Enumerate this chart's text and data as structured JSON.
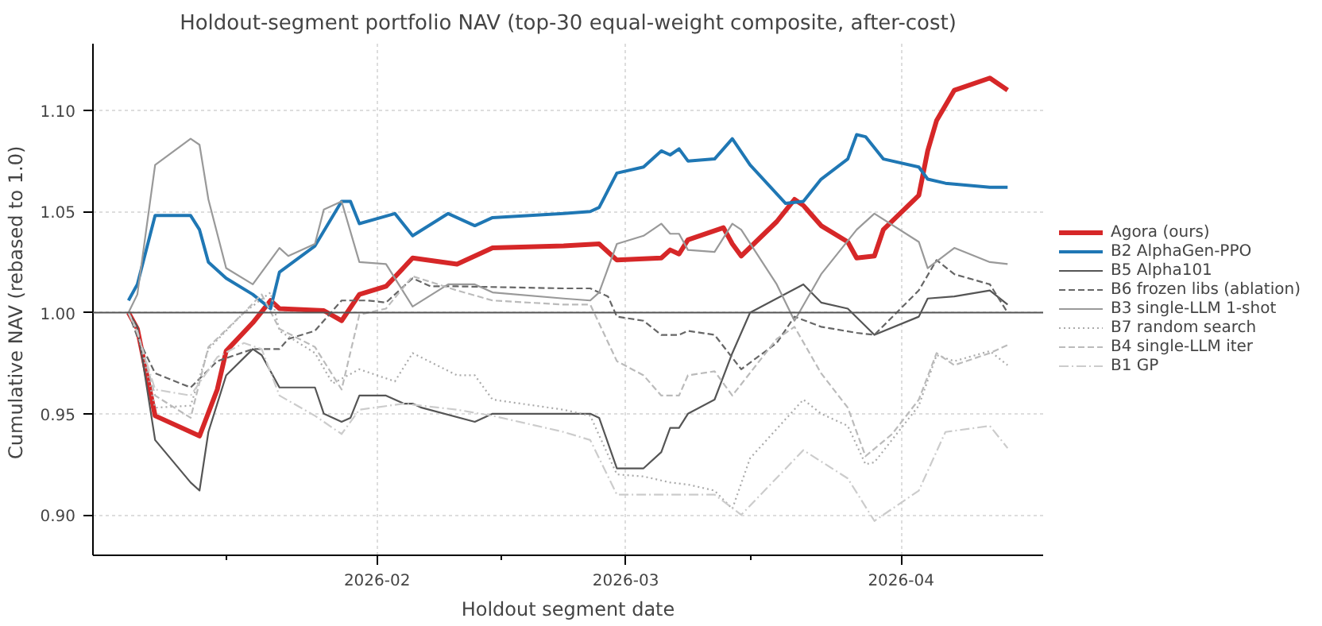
{
  "chart_data": {
    "type": "line",
    "title": "Holdout-segment portfolio NAV (top-30 equal-weight composite, after-cost)",
    "xlabel": "Holdout segment date",
    "ylabel": "Cumulative NAV  (rebased to 1.0)",
    "xlim": [
      "2025-12-31",
      "2026-04-17"
    ],
    "ylim": [
      0.88,
      1.133
    ],
    "xticks": [
      {
        "value": "2026-01-15",
        "label": null
      },
      {
        "value": "2026-02-01",
        "label": "2026-02"
      },
      {
        "value": "2026-02-15",
        "label": null
      },
      {
        "value": "2026-03-01",
        "label": "2026-03"
      },
      {
        "value": "2026-03-15",
        "label": null
      },
      {
        "value": "2026-04-01",
        "label": "2026-04"
      }
    ],
    "yticks": [
      {
        "value": 0.9,
        "label": "0.90"
      },
      {
        "value": 0.95,
        "label": "0.95"
      },
      {
        "value": 1.0,
        "label": "1.00"
      },
      {
        "value": 1.05,
        "label": "1.05"
      },
      {
        "value": 1.1,
        "label": "1.10"
      }
    ],
    "grid": true,
    "legend": "right",
    "marker": "none",
    "ref_lines": [
      {
        "axis": "y",
        "value": 1.0,
        "label": null,
        "color": "#555555",
        "line_style": "solid"
      }
    ],
    "series": [
      {
        "name": "Agora (ours)",
        "color": "#d62728",
        "line_style": "solid",
        "x": [
          "2026-01-04",
          "2026-01-05",
          "2026-01-07",
          "2026-01-12",
          "2026-01-14",
          "2026-01-15",
          "2026-01-18",
          "2026-01-20",
          "2026-01-21",
          "2026-01-26",
          "2026-01-28",
          "2026-01-30",
          "2026-02-02",
          "2026-02-05",
          "2026-02-10",
          "2026-02-14",
          "2026-02-22",
          "2026-02-26",
          "2026-02-28",
          "2026-03-05",
          "2026-03-06",
          "2026-03-07",
          "2026-03-08",
          "2026-03-12",
          "2026-03-13",
          "2026-03-14",
          "2026-03-18",
          "2026-03-20",
          "2026-03-21",
          "2026-03-23",
          "2026-03-26",
          "2026-03-27",
          "2026-03-29",
          "2026-03-30",
          "2026-04-03",
          "2026-04-04",
          "2026-04-05",
          "2026-04-07",
          "2026-04-11",
          "2026-04-13"
        ],
        "values": [
          1.0,
          0.992,
          0.949,
          0.939,
          0.962,
          0.981,
          0.995,
          1.006,
          1.002,
          1.001,
          0.996,
          1.009,
          1.013,
          1.027,
          1.024,
          1.032,
          1.033,
          1.034,
          1.026,
          1.027,
          1.031,
          1.029,
          1.036,
          1.042,
          1.034,
          1.028,
          1.045,
          1.056,
          1.053,
          1.043,
          1.035,
          1.027,
          1.028,
          1.041,
          1.058,
          1.08,
          1.095,
          1.11,
          1.116,
          1.11
        ]
      },
      {
        "name": "B2 AlphaGen-PPO",
        "color": "#1f77b4",
        "line_style": "solid",
        "x": [
          "2026-01-04",
          "2026-01-05",
          "2026-01-07",
          "2026-01-11",
          "2026-01-12",
          "2026-01-13",
          "2026-01-15",
          "2026-01-18",
          "2026-01-20",
          "2026-01-21",
          "2026-01-25",
          "2026-01-28",
          "2026-01-29",
          "2026-01-30",
          "2026-02-03",
          "2026-02-05",
          "2026-02-09",
          "2026-02-12",
          "2026-02-14",
          "2026-02-22",
          "2026-02-25",
          "2026-02-26",
          "2026-02-28",
          "2026-03-03",
          "2026-03-05",
          "2026-03-06",
          "2026-03-07",
          "2026-03-08",
          "2026-03-11",
          "2026-03-13",
          "2026-03-15",
          "2026-03-19",
          "2026-03-21",
          "2026-03-23",
          "2026-03-26",
          "2026-03-27",
          "2026-03-28",
          "2026-03-30",
          "2026-04-03",
          "2026-04-04",
          "2026-04-06",
          "2026-04-11",
          "2026-04-13"
        ],
        "values": [
          1.006,
          1.014,
          1.048,
          1.048,
          1.041,
          1.025,
          1.017,
          1.009,
          1.002,
          1.02,
          1.033,
          1.055,
          1.055,
          1.044,
          1.049,
          1.038,
          1.049,
          1.043,
          1.047,
          1.049,
          1.05,
          1.052,
          1.069,
          1.072,
          1.08,
          1.078,
          1.081,
          1.075,
          1.076,
          1.086,
          1.073,
          1.054,
          1.055,
          1.066,
          1.076,
          1.088,
          1.087,
          1.076,
          1.072,
          1.066,
          1.064,
          1.062,
          1.062
        ]
      },
      {
        "name": "B5 Alpha101",
        "color": "#555555",
        "line_style": "solid",
        "x": [
          "2026-01-04",
          "2026-01-05",
          "2026-01-07",
          "2026-01-11",
          "2026-01-12",
          "2026-01-13",
          "2026-01-15",
          "2026-01-18",
          "2026-01-19",
          "2026-01-21",
          "2026-01-25",
          "2026-01-26",
          "2026-01-28",
          "2026-01-29",
          "2026-01-30",
          "2026-02-02",
          "2026-02-04",
          "2026-02-05",
          "2026-02-06",
          "2026-02-12",
          "2026-02-14",
          "2026-02-22",
          "2026-02-25",
          "2026-02-26",
          "2026-02-28",
          "2026-03-03",
          "2026-03-05",
          "2026-03-06",
          "2026-03-07",
          "2026-03-08",
          "2026-03-11",
          "2026-03-13",
          "2026-03-15",
          "2026-03-21",
          "2026-03-23",
          "2026-03-26",
          "2026-03-29",
          "2026-04-03",
          "2026-04-04",
          "2026-04-07",
          "2026-04-11",
          "2026-04-13"
        ],
        "values": [
          1.0,
          0.993,
          0.937,
          0.916,
          0.912,
          0.941,
          0.969,
          0.982,
          0.979,
          0.963,
          0.963,
          0.95,
          0.946,
          0.948,
          0.959,
          0.959,
          0.955,
          0.955,
          0.953,
          0.946,
          0.95,
          0.95,
          0.95,
          0.948,
          0.923,
          0.923,
          0.931,
          0.943,
          0.943,
          0.95,
          0.957,
          0.98,
          1.0,
          1.014,
          1.005,
          1.002,
          0.989,
          0.998,
          1.007,
          1.008,
          1.011,
          1.004
        ]
      },
      {
        "name": "B6 frozen libs (ablation)",
        "color": "#666666",
        "line_style": "dashed",
        "x": [
          "2026-01-04",
          "2026-01-05",
          "2026-01-07",
          "2026-01-11",
          "2026-01-14",
          "2026-01-18",
          "2026-01-21",
          "2026-01-22",
          "2026-01-25",
          "2026-01-28",
          "2026-01-31",
          "2026-02-02",
          "2026-02-05",
          "2026-02-07",
          "2026-02-10",
          "2026-02-22",
          "2026-02-25",
          "2026-02-27",
          "2026-02-28",
          "2026-03-03",
          "2026-03-05",
          "2026-03-07",
          "2026-03-08",
          "2026-03-11",
          "2026-03-14",
          "2026-03-18",
          "2026-03-20",
          "2026-03-23",
          "2026-03-27",
          "2026-03-29",
          "2026-04-03",
          "2026-04-05",
          "2026-04-07",
          "2026-04-11",
          "2026-04-13"
        ],
        "values": [
          1.0,
          0.988,
          0.97,
          0.963,
          0.976,
          0.982,
          0.982,
          0.987,
          0.991,
          1.006,
          1.006,
          1.005,
          1.017,
          1.013,
          1.013,
          1.012,
          1.012,
          1.008,
          0.998,
          0.996,
          0.989,
          0.989,
          0.991,
          0.989,
          0.972,
          0.985,
          0.998,
          0.993,
          0.99,
          0.989,
          1.011,
          1.026,
          1.019,
          1.014,
          1.0
        ]
      },
      {
        "name": "B3 single-LLM 1-shot",
        "color": "#999999",
        "line_style": "solid",
        "x": [
          "2026-01-04",
          "2026-01-05",
          "2026-01-07",
          "2026-01-11",
          "2026-01-12",
          "2026-01-13",
          "2026-01-15",
          "2026-01-18",
          "2026-01-21",
          "2026-01-22",
          "2026-01-25",
          "2026-01-26",
          "2026-01-28",
          "2026-01-30",
          "2026-02-02",
          "2026-02-05",
          "2026-02-09",
          "2026-02-12",
          "2026-02-14",
          "2026-02-22",
          "2026-02-25",
          "2026-02-26",
          "2026-02-28",
          "2026-03-03",
          "2026-03-05",
          "2026-03-06",
          "2026-03-07",
          "2026-03-08",
          "2026-03-11",
          "2026-03-13",
          "2026-03-14",
          "2026-03-18",
          "2026-03-20",
          "2026-03-23",
          "2026-03-27",
          "2026-03-29",
          "2026-04-03",
          "2026-04-04",
          "2026-04-07",
          "2026-04-11",
          "2026-04-13"
        ],
        "values": [
          1.0,
          1.009,
          1.073,
          1.086,
          1.083,
          1.056,
          1.022,
          1.014,
          1.032,
          1.028,
          1.034,
          1.051,
          1.055,
          1.025,
          1.024,
          1.003,
          1.014,
          1.014,
          1.01,
          1.007,
          1.006,
          1.01,
          1.034,
          1.038,
          1.044,
          1.039,
          1.039,
          1.031,
          1.03,
          1.044,
          1.041,
          1.014,
          0.996,
          1.019,
          1.041,
          1.049,
          1.035,
          1.022,
          1.032,
          1.025,
          1.024
        ]
      },
      {
        "name": "B7 random search",
        "color": "#aaaaaa",
        "line_style": "dotted",
        "x": [
          "2026-01-04",
          "2026-01-05",
          "2026-01-07",
          "2026-01-11",
          "2026-01-13",
          "2026-01-17",
          "2026-01-20",
          "2026-01-21",
          "2026-01-25",
          "2026-01-27",
          "2026-01-30",
          "2026-02-03",
          "2026-02-05",
          "2026-02-10",
          "2026-02-12",
          "2026-02-14",
          "2026-02-22",
          "2026-02-25",
          "2026-02-28",
          "2026-03-03",
          "2026-03-06",
          "2026-03-08",
          "2026-03-11",
          "2026-03-13",
          "2026-03-15",
          "2026-03-21",
          "2026-03-23",
          "2026-03-26",
          "2026-03-28",
          "2026-03-29",
          "2026-04-03",
          "2026-04-05",
          "2026-04-07",
          "2026-04-11",
          "2026-04-13"
        ],
        "values": [
          1.0,
          0.991,
          0.953,
          0.954,
          0.982,
          1.0,
          1.01,
          0.991,
          0.98,
          0.965,
          0.972,
          0.966,
          0.98,
          0.969,
          0.969,
          0.957,
          0.952,
          0.949,
          0.92,
          0.919,
          0.916,
          0.915,
          0.912,
          0.903,
          0.928,
          0.957,
          0.95,
          0.944,
          0.925,
          0.926,
          0.954,
          0.979,
          0.976,
          0.981,
          0.974
        ]
      },
      {
        "name": "B4 single-LLM iter",
        "color": "#bbbbbb",
        "line_style": "dashed",
        "x": [
          "2026-01-04",
          "2026-01-05",
          "2026-01-07",
          "2026-01-11",
          "2026-01-13",
          "2026-01-17",
          "2026-01-19",
          "2026-01-21",
          "2026-01-25",
          "2026-01-28",
          "2026-01-30",
          "2026-02-02",
          "2026-02-05",
          "2026-02-10",
          "2026-02-14",
          "2026-02-22",
          "2026-02-25",
          "2026-02-28",
          "2026-03-03",
          "2026-03-05",
          "2026-03-07",
          "2026-03-08",
          "2026-03-11",
          "2026-03-13",
          "2026-03-18",
          "2026-03-20",
          "2026-03-23",
          "2026-03-26",
          "2026-03-28",
          "2026-03-31",
          "2026-04-03",
          "2026-04-05",
          "2026-04-07",
          "2026-04-11",
          "2026-04-13"
        ],
        "values": [
          1.0,
          0.991,
          0.959,
          0.948,
          0.983,
          1.0,
          1.009,
          0.992,
          0.983,
          0.962,
          0.999,
          1.002,
          1.018,
          1.011,
          1.006,
          1.004,
          1.004,
          0.976,
          0.969,
          0.959,
          0.959,
          0.969,
          0.971,
          0.959,
          0.987,
          0.993,
          0.97,
          0.953,
          0.929,
          0.94,
          0.957,
          0.98,
          0.974,
          0.98,
          0.984
        ]
      },
      {
        "name": "B1 GP",
        "color": "#cccccc",
        "line_style": "dashdot",
        "x": [
          "2026-01-04",
          "2026-01-05",
          "2026-01-07",
          "2026-01-11",
          "2026-01-14",
          "2026-01-17",
          "2026-01-19",
          "2026-01-21",
          "2026-01-25",
          "2026-01-28",
          "2026-01-30",
          "2026-02-04",
          "2026-02-10",
          "2026-02-14",
          "2026-02-22",
          "2026-02-25",
          "2026-02-28",
          "2026-03-05",
          "2026-03-07",
          "2026-03-11",
          "2026-03-14",
          "2026-03-21",
          "2026-03-26",
          "2026-03-29",
          "2026-04-03",
          "2026-04-06",
          "2026-04-11",
          "2026-04-13"
        ],
        "values": [
          1.0,
          0.99,
          0.962,
          0.959,
          0.978,
          0.985,
          0.982,
          0.959,
          0.949,
          0.94,
          0.952,
          0.955,
          0.952,
          0.949,
          0.941,
          0.937,
          0.91,
          0.91,
          0.91,
          0.91,
          0.9,
          0.932,
          0.918,
          0.897,
          0.912,
          0.941,
          0.944,
          0.933
        ]
      }
    ]
  }
}
